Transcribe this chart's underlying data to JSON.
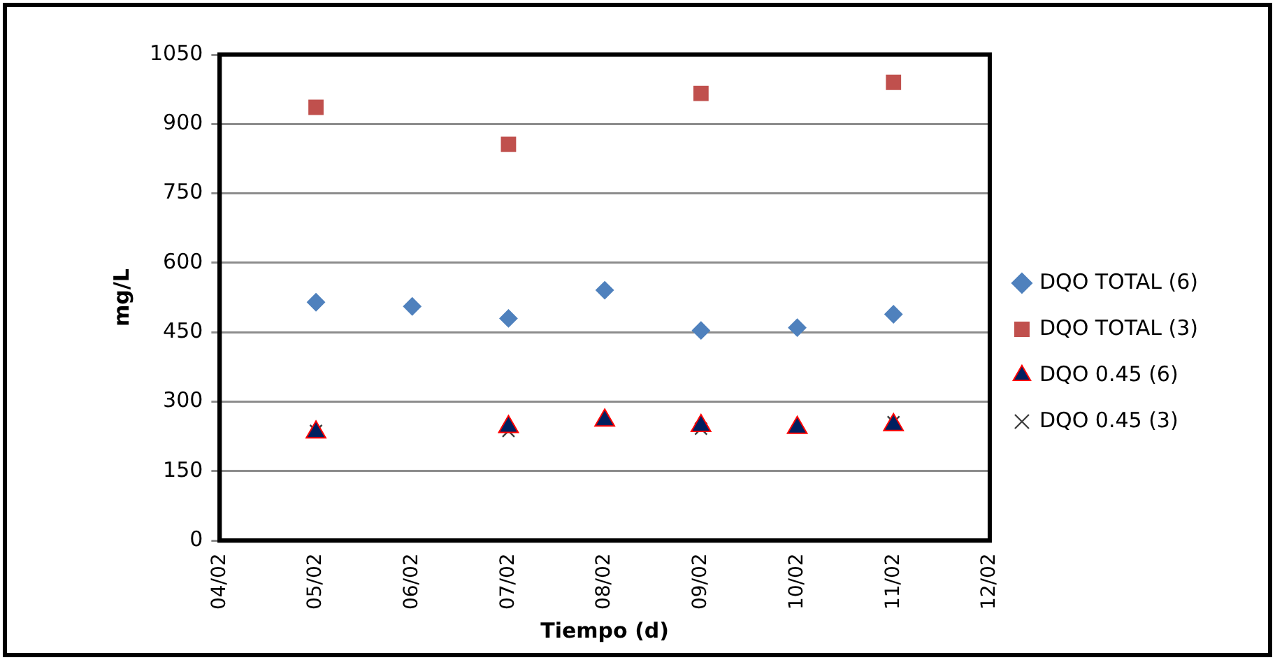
{
  "chart_data": {
    "type": "scatter",
    "xlabel": "Tiempo (d)",
    "ylabel": "mg/L",
    "x": [
      "--02-05",
      "--02-06",
      "--02-07",
      "--02-08",
      "--02-09",
      "--02-10",
      "--02-11"
    ],
    "series": [
      {
        "name": "DQO TOTAL (6)",
        "color": "#4f81bd",
        "marker": "diamond",
        "values": [
          515,
          506,
          480,
          541,
          454,
          460,
          489
        ]
      },
      {
        "name": "DQO TOTAL (3)",
        "color": "#c0504d",
        "marker": "square",
        "values": [
          936,
          null,
          856,
          null,
          966,
          null,
          990
        ]
      },
      {
        "name": "DQO 0.45 (6)",
        "color": "#002060",
        "marker": "triangle",
        "values": [
          234,
          null,
          246,
          260,
          248,
          244,
          250
        ]
      },
      {
        "name": "DQO 0.45 (3)",
        "color": "#404040",
        "marker": "cross",
        "values": [
          237,
          null,
          237,
          null,
          242,
          null,
          256
        ]
      }
    ],
    "xlim": [
      "--02-04",
      "--02-12"
    ],
    "xticks": [
      {
        "value": "--02-04",
        "label": "04/02"
      },
      {
        "value": "--02-05",
        "label": "05/02"
      },
      {
        "value": "--02-06",
        "label": "06/02"
      },
      {
        "value": "--02-07",
        "label": "07/02"
      },
      {
        "value": "--02-08",
        "label": "08/02"
      },
      {
        "value": "--02-09",
        "label": "09/02"
      },
      {
        "value": "--02-10",
        "label": "10/02"
      },
      {
        "value": "--02-11",
        "label": "11/02"
      },
      {
        "value": "--02-12",
        "label": "12/02"
      }
    ],
    "ylim": [
      0,
      1050
    ],
    "yticks": [
      0,
      150,
      300,
      450,
      600,
      750,
      900,
      1050
    ],
    "grid": "y",
    "legend": "right"
  }
}
